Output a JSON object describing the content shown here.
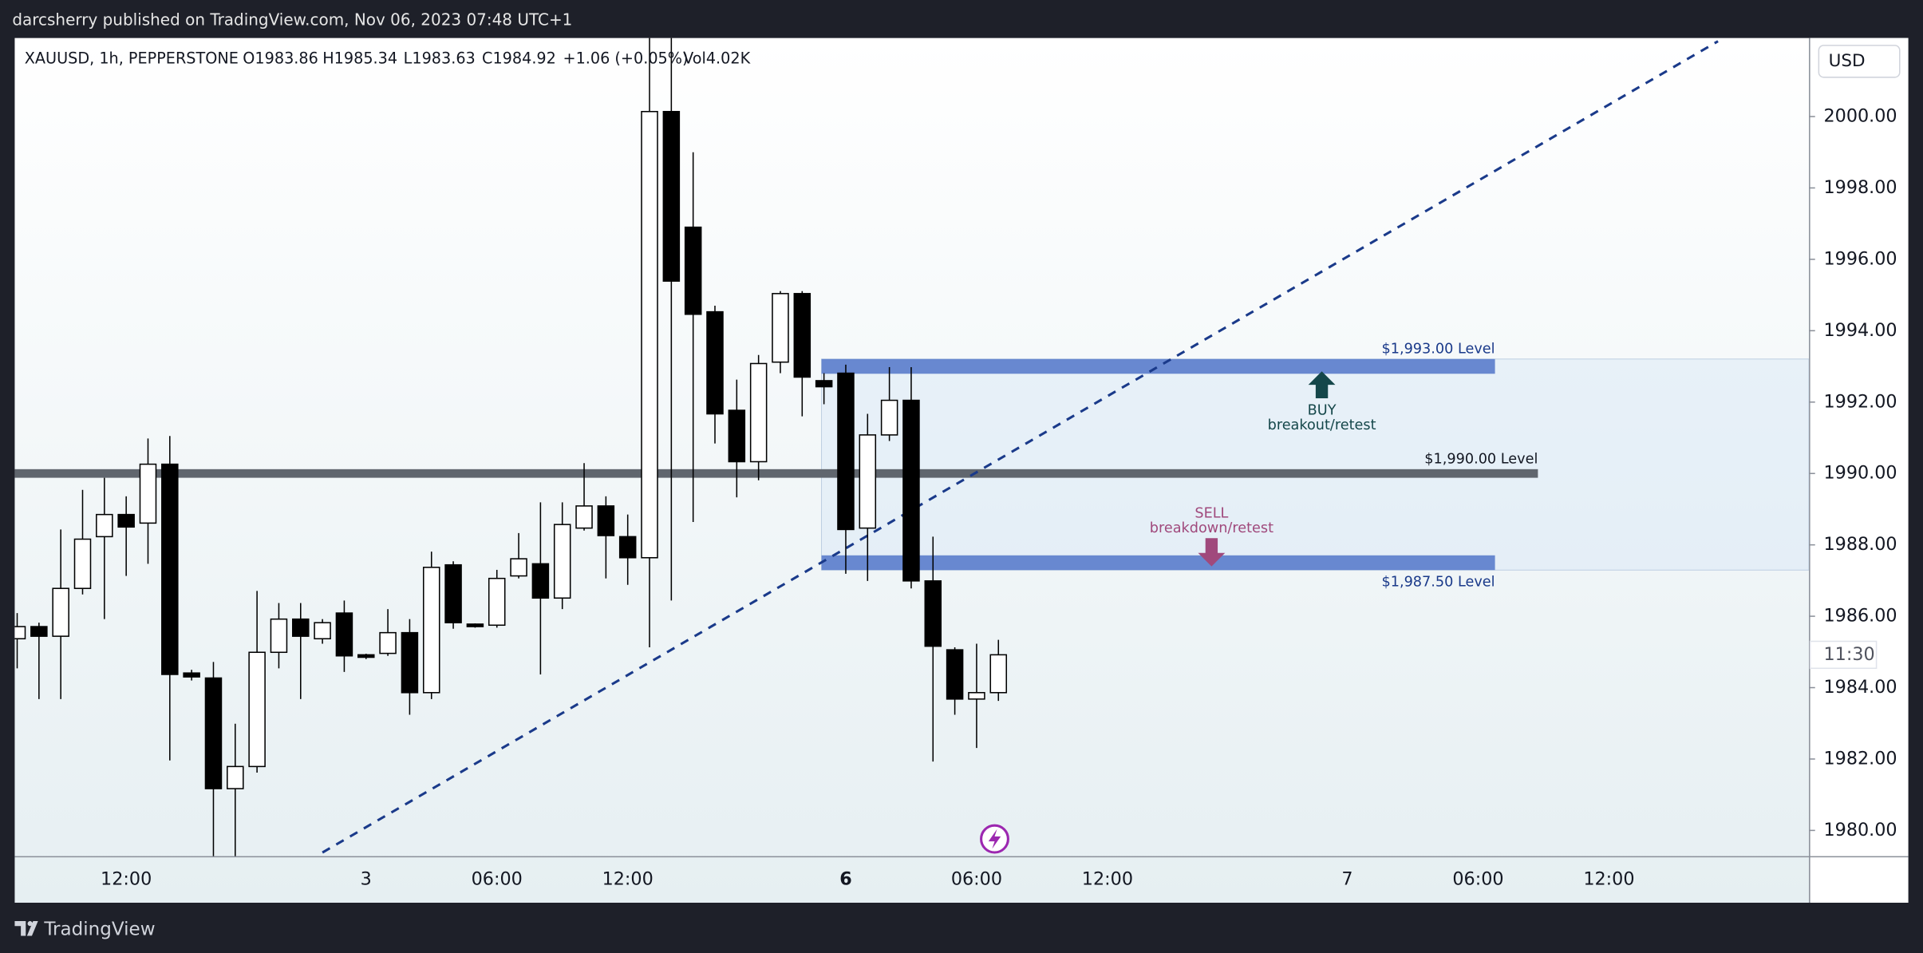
{
  "header": {
    "published": "darcsherry published on TradingView.com, Nov 06, 2023 07:48 UTC+1"
  },
  "footer": {
    "brand": "TradingView"
  },
  "chart_data": {
    "type": "candlestick",
    "legend": {
      "symbol": "XAUUSD, 1h, PEPPERSTONE",
      "open": "O1983.86",
      "high": "H1985.34",
      "low": "L1983.63",
      "close": "C1984.92",
      "change": "+1.06 (+0.05%)",
      "volume": "Vol4.02K"
    },
    "currency": "USD",
    "countdown": "11:30",
    "categories": [
      null,
      null,
      null,
      null,
      null,
      "12:00",
      null,
      null,
      null,
      null,
      null,
      null,
      null,
      null,
      null,
      null,
      "3",
      null,
      null,
      null,
      null,
      null,
      "06:00",
      null,
      null,
      null,
      null,
      null,
      "12:00",
      null,
      null,
      null,
      null,
      null,
      null,
      null,
      null,
      null,
      "6",
      null,
      null,
      null,
      null,
      null,
      "06:00",
      null,
      null,
      null,
      null,
      null,
      "12:00",
      null,
      null,
      null,
      null,
      null,
      null,
      null,
      null,
      null,
      null,
      "7",
      null,
      null,
      null,
      null,
      null,
      "06:00",
      null,
      null,
      null,
      null,
      null,
      "12:00",
      null,
      null,
      null,
      null,
      null,
      null,
      null,
      null,
      null
    ],
    "open": [
      1985.37,
      1985.71,
      1985.44,
      1986.78,
      1988.23,
      1988.85,
      1988.61,
      1990.26,
      1984.41,
      1984.27,
      1981.17,
      1981.79,
      1984.99,
      1985.92,
      1985.37,
      1986.09,
      1984.92,
      1984.96,
      1985.54,
      1983.86,
      1987.44,
      1985.78,
      1985.75,
      1987.13,
      1987.47,
      1986.51,
      1988.47,
      1989.09,
      1988.23,
      1987.64,
      2000.14,
      1996.9,
      1994.53,
      1991.77,
      1990.33,
      1993.12,
      1995.04,
      1992.6,
      1992.81,
      1988.47,
      1991.08,
      1992.05,
      1986.99,
      1985.06,
      1983.68,
      1983.86,
      null,
      null,
      null,
      null,
      null,
      null,
      null,
      null,
      null,
      null,
      null,
      null,
      null,
      null,
      null,
      null,
      null,
      null,
      null,
      null,
      null,
      null,
      null,
      null,
      null,
      null,
      null,
      null,
      null,
      null,
      null,
      null,
      null,
      null,
      null,
      null,
      null
    ],
    "high": [
      1986.09,
      1985.82,
      1988.43,
      1989.54,
      1989.88,
      1989.36,
      1990.98,
      1991.05,
      1984.5,
      1984.72,
      1982.99,
      1986.71,
      1986.37,
      1986.37,
      1985.92,
      1986.44,
      1984.95,
      1986.2,
      1985.92,
      1987.81,
      1987.54,
      1985.8,
      1987.3,
      1988.33,
      1989.19,
      1989.19,
      1990.29,
      1989.36,
      1988.85,
      2002.27,
      2002.27,
      1999.0,
      1994.7,
      1992.63,
      1993.32,
      1995.11,
      1995.11,
      1992.81,
      1993.05,
      1991.67,
      1992.98,
      1992.98,
      1988.23,
      1985.13,
      1985.23,
      1985.34,
      null,
      null,
      null,
      null,
      null,
      null,
      null,
      null,
      null,
      null,
      null,
      null,
      null,
      null,
      null,
      null,
      null,
      null,
      null,
      null,
      null,
      null,
      null,
      null,
      null,
      null,
      null,
      null,
      null,
      null,
      null,
      null,
      null,
      null,
      null,
      null,
      null
    ],
    "low": [
      1984.54,
      1983.68,
      1983.68,
      1986.61,
      1985.92,
      1987.13,
      1987.47,
      1981.96,
      1984.2,
      1979.21,
      1979.21,
      1981.62,
      1984.54,
      1983.68,
      1985.23,
      1984.44,
      1984.8,
      1984.89,
      1983.24,
      1983.68,
      1985.65,
      1985.68,
      1985.68,
      1987.06,
      1984.37,
      1986.2,
      1988.4,
      1987.06,
      1986.88,
      1985.13,
      1986.44,
      1988.64,
      1990.84,
      1989.33,
      1989.81,
      1992.81,
      1991.6,
      1991.94,
      1987.19,
      1986.99,
      1990.91,
      1986.78,
      1981.93,
      1983.24,
      1982.31,
      1983.63,
      null,
      null,
      null,
      null,
      null,
      null,
      null,
      null,
      null,
      null,
      null,
      null,
      null,
      null,
      null,
      null,
      null,
      null,
      null,
      null,
      null,
      null,
      null,
      null,
      null,
      null,
      null,
      null,
      null,
      null,
      null,
      null,
      null,
      null,
      null,
      null,
      null
    ],
    "close": [
      1985.71,
      1985.44,
      1986.78,
      1988.16,
      1988.85,
      1988.5,
      1990.26,
      1984.37,
      1984.3,
      1981.17,
      1981.79,
      1984.99,
      1985.92,
      1985.44,
      1985.82,
      1984.89,
      1984.85,
      1985.54,
      1983.86,
      1987.37,
      1985.82,
      1985.71,
      1987.06,
      1987.61,
      1986.51,
      1988.57,
      1989.09,
      1988.26,
      1987.64,
      2000.14,
      1995.39,
      1994.46,
      1991.67,
      1990.33,
      1993.08,
      1995.04,
      1992.7,
      1992.43,
      1988.43,
      1991.08,
      1992.05,
      1986.99,
      1985.16,
      1983.68,
      1983.86,
      1984.92,
      null,
      null,
      null,
      null,
      null,
      null,
      null,
      null,
      null,
      null,
      null,
      null,
      null,
      null,
      null,
      null,
      null,
      null,
      null,
      null,
      null,
      null,
      null,
      null,
      null,
      null,
      null,
      null,
      null,
      null,
      null,
      null,
      null,
      null,
      null,
      null,
      null
    ],
    "up_color": "#ffffff",
    "down_color": "#000000",
    "ylim": [
      1979.28,
      2002.2
    ],
    "yticks": [
      {
        "value": 1980,
        "label": "1980.00"
      },
      {
        "value": 1982,
        "label": "1982.00"
      },
      {
        "value": 1984,
        "label": "1984.00"
      },
      {
        "value": 1986,
        "label": "1986.00"
      },
      {
        "value": 1988,
        "label": "1988.00"
      },
      {
        "value": 1990,
        "label": "1990.00"
      },
      {
        "value": 1992,
        "label": "1992.00"
      },
      {
        "value": 1994,
        "label": "1994.00"
      },
      {
        "value": 1996,
        "label": "1996.00"
      },
      {
        "value": 1998,
        "label": "1998.00"
      },
      {
        "value": 2000,
        "label": "2000.00"
      }
    ],
    "levels": [
      {
        "label": "$1,993.00 Level",
        "value": 1993,
        "color": "#5a7ccb"
      },
      {
        "label": "$1,990.00 Level",
        "value": 1990,
        "color": "#60666e"
      },
      {
        "label": "$1,987.50 Level",
        "value": 1987.5,
        "color": "#5a7ccb"
      }
    ],
    "zone": [
      1993.0,
      1987.5
    ],
    "trendline": {
      "x": [
        14,
        78
      ],
      "values": [
        1979.38,
        2002.11
      ],
      "color": "#1a3a8a"
    },
    "annotations": [
      {
        "title": "BUY",
        "text": "breakout/retest",
        "color": "#15474a"
      },
      {
        "title": "SELL",
        "text": "breakdown/retest",
        "color": "#a0497c"
      }
    ]
  }
}
